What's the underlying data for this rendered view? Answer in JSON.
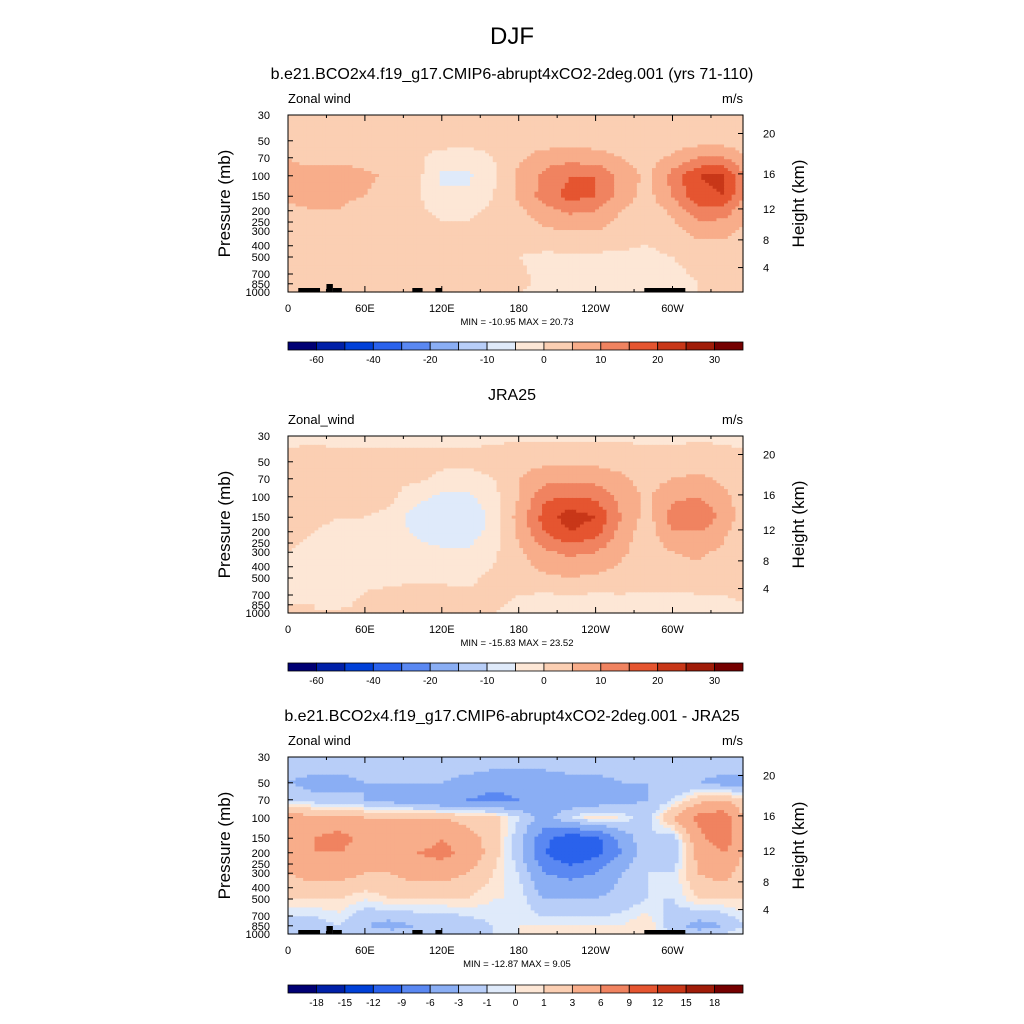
{
  "figure": {
    "title": "DJF",
    "colors": {
      "abs": [
        "#000074",
        "#0020a8",
        "#0040d8",
        "#2a62ec",
        "#5a88f2",
        "#8aaef4",
        "#b8cef8",
        "#dfeafa",
        "#fde7d6",
        "#fbcfb3",
        "#f8ad8a",
        "#f08360",
        "#e55530",
        "#c83718",
        "#a01c08",
        "#750000"
      ],
      "diff": [
        "#000074",
        "#0020a8",
        "#0040d8",
        "#2a62ec",
        "#5a88f2",
        "#8aaef4",
        "#b8cef8",
        "#dfeafa",
        "#fde7d6",
        "#fbcfb3",
        "#f8ad8a",
        "#f08360",
        "#e55530",
        "#c83718",
        "#a01c08",
        "#750000"
      ]
    }
  },
  "chart_data": [
    {
      "type": "heatmap",
      "title": "b.e21.BCO2x4.f19_g17.CMIP6-abrupt4xCO2-2deg.001 (yrs 71-110)",
      "left_label": "Zonal wind",
      "units": "m/s",
      "ylabel": "Pressure (mb)",
      "ylabel_right": "Height (km)",
      "xticks": [
        "0",
        "60E",
        "120E",
        "180",
        "120W",
        "60W"
      ],
      "xtick_values": [
        0,
        60,
        120,
        180,
        240,
        300
      ],
      "xlim": [
        0,
        355
      ],
      "yticks": [
        "30",
        "50",
        "70",
        "100",
        "150",
        "200",
        "250",
        "300",
        "400",
        "500",
        "700",
        "850",
        "1000"
      ],
      "ytick_values": [
        30,
        50,
        70,
        100,
        150,
        200,
        250,
        300,
        400,
        500,
        700,
        850,
        1000
      ],
      "right_ticks": [
        "20",
        "16",
        "12",
        "8",
        "4"
      ],
      "right_tick_values": [
        20,
        16,
        12,
        8,
        4
      ],
      "stats": "MIN = -10.95  MAX =  20.73",
      "colorbar_ticks": [
        "-60",
        "-40",
        "-20",
        "-10",
        "0",
        "10",
        "20",
        "30"
      ],
      "colorbar_levels": [
        -70,
        -60,
        -50,
        -40,
        -30,
        -20,
        -15,
        -10,
        -5,
        0,
        5,
        10,
        15,
        20,
        25,
        30
      ],
      "field": {
        "lons": [
          0,
          20,
          40,
          60,
          80,
          100,
          120,
          140,
          160,
          180,
          200,
          220,
          240,
          260,
          280,
          300,
          320,
          340,
          355
        ],
        "pressures": [
          30,
          50,
          70,
          100,
          150,
          200,
          300,
          500,
          850,
          1000
        ],
        "values": [
          [
            2,
            2,
            2,
            2,
            2,
            2,
            2,
            2,
            2,
            2,
            2,
            2,
            2,
            2,
            2,
            2,
            2,
            2,
            2
          ],
          [
            2,
            2,
            2,
            2,
            2,
            2,
            2,
            2,
            2,
            2,
            2,
            3,
            3,
            3,
            2,
            2,
            3,
            3,
            2
          ],
          [
            5,
            4,
            4,
            3,
            2,
            1,
            -2,
            -3,
            0,
            4,
            8,
            8,
            7,
            5,
            3,
            6,
            10,
            10,
            6
          ],
          [
            6,
            6,
            7,
            6,
            4,
            2,
            -6,
            -6,
            -1,
            6,
            11,
            15,
            15,
            8,
            4,
            12,
            20,
            21,
            10
          ],
          [
            6,
            6,
            6,
            5,
            3,
            1,
            -4,
            -4,
            0,
            6,
            12,
            17,
            15,
            8,
            3,
            10,
            19,
            20,
            10
          ],
          [
            4,
            5,
            5,
            3,
            2,
            1,
            -1,
            -1,
            1,
            4,
            8,
            11,
            10,
            5,
            2,
            6,
            13,
            12,
            8
          ],
          [
            2,
            2,
            2,
            2,
            2,
            2,
            1,
            1,
            2,
            2,
            4,
            5,
            5,
            3,
            1,
            3,
            7,
            7,
            4
          ],
          [
            1,
            1,
            1,
            1,
            1,
            2,
            2,
            2,
            1,
            0,
            -1,
            -1,
            -1,
            -1,
            -1,
            0,
            1,
            1,
            1
          ],
          [
            1,
            1,
            1,
            1,
            2,
            3,
            3,
            3,
            2,
            1,
            -1,
            -2,
            -2,
            -2,
            -2,
            -1,
            0,
            1,
            1
          ],
          [
            1,
            1,
            1,
            1,
            2,
            2,
            2,
            1,
            1,
            0,
            -1,
            -1,
            -1,
            -1,
            -1,
            0,
            0,
            1,
            1
          ]
        ]
      },
      "topography": [
        [
          8,
          25
        ],
        [
          30,
          35
        ],
        [
          35,
          42
        ],
        [
          97,
          105
        ],
        [
          115,
          120
        ],
        [
          278,
          310
        ]
      ]
    },
    {
      "type": "heatmap",
      "title": "JRA25",
      "left_label": "Zonal_wind",
      "units": "m/s",
      "ylabel": "Pressure (mb)",
      "ylabel_right": "Height (km)",
      "xticks": [
        "0",
        "60E",
        "120E",
        "180",
        "120W",
        "60W"
      ],
      "xtick_values": [
        0,
        60,
        120,
        180,
        240,
        300
      ],
      "xlim": [
        0,
        355
      ],
      "yticks": [
        "30",
        "50",
        "70",
        "100",
        "150",
        "200",
        "250",
        "300",
        "400",
        "500",
        "700",
        "850",
        "1000"
      ],
      "ytick_values": [
        30,
        50,
        70,
        100,
        150,
        200,
        250,
        300,
        400,
        500,
        700,
        850,
        1000
      ],
      "right_ticks": [
        "20",
        "16",
        "12",
        "8",
        "4"
      ],
      "right_tick_values": [
        20,
        16,
        12,
        8,
        4
      ],
      "stats": "MIN = -15.83  MAX =  23.52",
      "colorbar_ticks": [
        "-60",
        "-40",
        "-20",
        "-10",
        "0",
        "10",
        "20",
        "30"
      ],
      "colorbar_levels": [
        -70,
        -60,
        -50,
        -40,
        -30,
        -20,
        -15,
        -10,
        -5,
        0,
        5,
        10,
        15,
        20,
        25,
        30
      ],
      "field": {
        "lons": [
          0,
          20,
          40,
          60,
          80,
          100,
          120,
          140,
          160,
          180,
          200,
          220,
          240,
          260,
          280,
          300,
          320,
          340,
          355
        ],
        "pressures": [
          30,
          50,
          70,
          100,
          150,
          200,
          300,
          500,
          850,
          1000
        ],
        "values": [
          [
            -1,
            -1,
            -1,
            -1,
            -1,
            -1,
            -1,
            -1,
            -1,
            -1,
            -1,
            -1,
            -1,
            -1,
            -1,
            -1,
            -1,
            -1,
            -1
          ],
          [
            1,
            2,
            1,
            1,
            1,
            1,
            1,
            1,
            2,
            3,
            4,
            4,
            4,
            3,
            2,
            2,
            3,
            2,
            1
          ],
          [
            2,
            2,
            2,
            2,
            1,
            1,
            -1,
            -2,
            0,
            5,
            8,
            9,
            8,
            6,
            3,
            5,
            6,
            4,
            2
          ],
          [
            3,
            3,
            3,
            2,
            1,
            -3,
            -6,
            -6,
            -2,
            5,
            14,
            15,
            14,
            8,
            4,
            9,
            10,
            6,
            3
          ],
          [
            2,
            1,
            0,
            0,
            -1,
            -8,
            -10,
            -10,
            -3,
            7,
            17,
            23,
            20,
            10,
            3,
            12,
            15,
            8,
            3
          ],
          [
            1,
            0,
            -1,
            -2,
            -2,
            -6,
            -8,
            -8,
            -3,
            6,
            15,
            20,
            17,
            8,
            2,
            10,
            10,
            6,
            2
          ],
          [
            0,
            -1,
            -1,
            -1,
            -1,
            -3,
            -4,
            -4,
            -1,
            4,
            9,
            11,
            10,
            6,
            2,
            5,
            6,
            4,
            1
          ],
          [
            -1,
            -1,
            -2,
            -1,
            -1,
            -1,
            -1,
            -1,
            1,
            2,
            4,
            5,
            4,
            3,
            2,
            2,
            3,
            2,
            1
          ],
          [
            0,
            0,
            -1,
            1,
            2,
            4,
            3,
            2,
            1,
            -1,
            -3,
            -3,
            -3,
            -2,
            -2,
            -2,
            -2,
            -1,
            0
          ],
          [
            0,
            0,
            1,
            1,
            2,
            2,
            2,
            1,
            0,
            -1,
            -2,
            -2,
            -2,
            -2,
            -2,
            -1,
            -1,
            0,
            0
          ]
        ]
      },
      "topography": []
    },
    {
      "type": "heatmap",
      "title": "b.e21.BCO2x4.f19_g17.CMIP6-abrupt4xCO2-2deg.001 - JRA25",
      "left_label": "Zonal wind",
      "units": "m/s",
      "ylabel": "Pressure (mb)",
      "ylabel_right": "Height (km)",
      "xticks": [
        "0",
        "60E",
        "120E",
        "180",
        "120W",
        "60W"
      ],
      "xtick_values": [
        0,
        60,
        120,
        180,
        240,
        300
      ],
      "xlim": [
        0,
        355
      ],
      "yticks": [
        "30",
        "50",
        "70",
        "100",
        "150",
        "200",
        "250",
        "300",
        "400",
        "500",
        "700",
        "850",
        "1000"
      ],
      "ytick_values": [
        30,
        50,
        70,
        100,
        150,
        200,
        250,
        300,
        400,
        500,
        700,
        850,
        1000
      ],
      "right_ticks": [
        "20",
        "16",
        "12",
        "8",
        "4"
      ],
      "right_tick_values": [
        20,
        16,
        12,
        8,
        4
      ],
      "stats": "MIN = -12.87  MAX =   9.05",
      "colorbar_ticks": [
        "-18",
        "-15",
        "-12",
        "-9",
        "-6",
        "-3",
        "-1",
        "0",
        "1",
        "3",
        "6",
        "9",
        "12",
        "15",
        "18"
      ],
      "colorbar_levels": [
        -21,
        -18,
        -15,
        -12,
        -9,
        -6,
        -3,
        -1,
        0,
        1,
        3,
        6,
        9,
        12,
        15,
        18
      ],
      "field": {
        "lons": [
          0,
          20,
          40,
          60,
          80,
          100,
          120,
          140,
          160,
          180,
          200,
          220,
          240,
          260,
          280,
          300,
          320,
          340,
          355
        ],
        "pressures": [
          30,
          50,
          70,
          100,
          150,
          200,
          300,
          500,
          850,
          1000
        ],
        "values": [
          [
            -1,
            -1,
            -1,
            -1,
            -1,
            -1,
            -1,
            -1,
            -1,
            -1,
            -1,
            -1,
            -1,
            -1,
            -1,
            -1,
            -1,
            -1,
            -1
          ],
          [
            -3,
            -4,
            -4,
            -3,
            -3,
            -3,
            -3,
            -4,
            -5,
            -5,
            -5,
            -4,
            -4,
            -3,
            -3,
            -3,
            -3,
            -4,
            -4
          ],
          [
            -1,
            -2,
            -2,
            -3,
            -4,
            -5,
            -6,
            -6,
            -7,
            -6,
            -5,
            -5,
            -5,
            -4,
            -3,
            -1,
            2,
            3,
            1
          ],
          [
            4,
            4,
            4,
            3,
            3,
            3,
            3,
            2,
            2,
            -1,
            -4,
            -1,
            1,
            0,
            -2,
            3,
            7,
            8,
            3
          ],
          [
            5,
            6,
            7,
            5,
            4,
            4,
            6,
            4,
            2,
            -2,
            -8,
            -11,
            -10,
            -5,
            -1,
            -2,
            5,
            8,
            4
          ],
          [
            5,
            6,
            6,
            5,
            4,
            6,
            7,
            5,
            2,
            -2,
            -9,
            -12,
            -10,
            -6,
            -1,
            -3,
            4,
            6,
            3
          ],
          [
            3,
            4,
            4,
            3,
            3,
            4,
            4,
            3,
            1,
            -1,
            -6,
            -7,
            -6,
            -3,
            -1,
            -1,
            3,
            4,
            2
          ],
          [
            1,
            1,
            1,
            0,
            1,
            1,
            1,
            1,
            0,
            0,
            -3,
            -3,
            -3,
            -2,
            -1,
            -1,
            1,
            1,
            1
          ],
          [
            -2,
            -2,
            -1,
            -3,
            -4,
            -3,
            -3,
            -2,
            -1,
            0,
            0,
            0,
            0,
            0,
            1,
            -2,
            -4,
            -3,
            -1
          ],
          [
            -1,
            -1,
            -1,
            -1,
            -2,
            -2,
            -1,
            -1,
            -1,
            0,
            0,
            0,
            0,
            0,
            1,
            -1,
            -2,
            -1,
            0
          ]
        ]
      },
      "topography": [
        [
          8,
          25
        ],
        [
          30,
          35
        ],
        [
          35,
          42
        ],
        [
          97,
          105
        ],
        [
          115,
          120
        ],
        [
          278,
          310
        ]
      ]
    }
  ]
}
